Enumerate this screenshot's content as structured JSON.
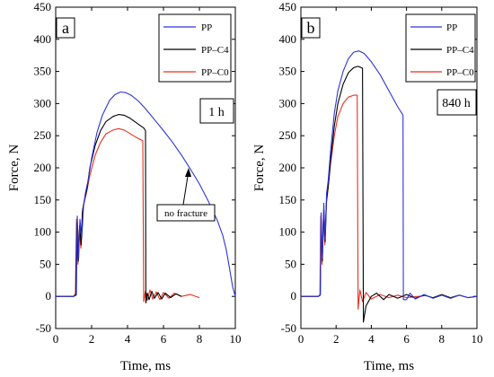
{
  "chart_data": [
    {
      "type": "line",
      "panel_label": "a",
      "condition_label": "1 h",
      "annotation": "no fracture",
      "xlabel": "Time, ms",
      "ylabel": "Force, N",
      "xlim": [
        0,
        10
      ],
      "ylim": [
        -50,
        450
      ],
      "x_ticks": [
        0,
        2,
        4,
        6,
        8,
        10
      ],
      "y_ticks": [
        -50,
        0,
        50,
        100,
        150,
        200,
        250,
        300,
        350,
        400,
        450
      ],
      "legend_position": "top-right",
      "series": [
        {
          "name": "PP",
          "color": "#2b35d8",
          "points": [
            [
              0,
              0
            ],
            [
              1.0,
              0
            ],
            [
              1.15,
              2
            ],
            [
              1.2,
              125
            ],
            [
              1.28,
              60
            ],
            [
              1.35,
              120
            ],
            [
              1.45,
              90
            ],
            [
              1.55,
              140
            ],
            [
              1.65,
              160
            ],
            [
              1.8,
              180
            ],
            [
              2.0,
              215
            ],
            [
              2.3,
              255
            ],
            [
              2.6,
              282
            ],
            [
              3.0,
              305
            ],
            [
              3.3,
              314
            ],
            [
              3.6,
              318
            ],
            [
              3.9,
              317
            ],
            [
              4.2,
              313
            ],
            [
              4.6,
              304
            ],
            [
              5.0,
              292
            ],
            [
              5.5,
              275
            ],
            [
              6.0,
              258
            ],
            [
              6.5,
              240
            ],
            [
              7.0,
              220
            ],
            [
              7.5,
              198
            ],
            [
              8.0,
              175
            ],
            [
              8.5,
              148
            ],
            [
              9.0,
              118
            ],
            [
              9.3,
              95
            ],
            [
              9.5,
              72
            ],
            [
              9.7,
              40
            ],
            [
              9.85,
              15
            ],
            [
              10.0,
              0
            ]
          ]
        },
        {
          "name": "PP–C4",
          "color": "#000000",
          "points": [
            [
              0,
              0
            ],
            [
              1.0,
              0
            ],
            [
              1.12,
              3
            ],
            [
              1.18,
              115
            ],
            [
              1.26,
              55
            ],
            [
              1.33,
              110
            ],
            [
              1.42,
              80
            ],
            [
              1.5,
              135
            ],
            [
              1.6,
              150
            ],
            [
              1.75,
              168
            ],
            [
              1.9,
              200
            ],
            [
              2.2,
              235
            ],
            [
              2.5,
              258
            ],
            [
              2.8,
              272
            ],
            [
              3.2,
              280
            ],
            [
              3.5,
              283
            ],
            [
              3.8,
              282
            ],
            [
              4.1,
              278
            ],
            [
              4.5,
              270
            ],
            [
              4.9,
              262
            ],
            [
              5.0,
              258
            ],
            [
              5.02,
              -10
            ],
            [
              5.1,
              5
            ],
            [
              5.2,
              -5
            ],
            [
              5.35,
              8
            ],
            [
              5.5,
              -3
            ],
            [
              5.7,
              6
            ],
            [
              5.9,
              -4
            ],
            [
              6.1,
              5
            ],
            [
              6.4,
              -2
            ],
            [
              6.7,
              4
            ],
            [
              7.0,
              0
            ]
          ]
        },
        {
          "name": "PP–C0",
          "color": "#e8301f",
          "points": [
            [
              0,
              0
            ],
            [
              1.0,
              0
            ],
            [
              1.1,
              4
            ],
            [
              1.16,
              120
            ],
            [
              1.24,
              50
            ],
            [
              1.32,
              105
            ],
            [
              1.4,
              75
            ],
            [
              1.48,
              130
            ],
            [
              1.58,
              145
            ],
            [
              1.72,
              162
            ],
            [
              1.9,
              188
            ],
            [
              2.2,
              220
            ],
            [
              2.5,
              240
            ],
            [
              2.8,
              253
            ],
            [
              3.2,
              259
            ],
            [
              3.5,
              261
            ],
            [
              3.8,
              259
            ],
            [
              4.1,
              254
            ],
            [
              4.5,
              247
            ],
            [
              4.85,
              242
            ],
            [
              4.9,
              -8
            ],
            [
              5.0,
              8
            ],
            [
              5.1,
              -6
            ],
            [
              5.25,
              10
            ],
            [
              5.4,
              -4
            ],
            [
              5.6,
              7
            ],
            [
              5.8,
              -5
            ],
            [
              6.0,
              6
            ],
            [
              6.3,
              -3
            ],
            [
              6.6,
              5
            ],
            [
              7.0,
              0
            ],
            [
              7.5,
              3
            ],
            [
              8.0,
              -2
            ]
          ]
        }
      ]
    },
    {
      "type": "line",
      "panel_label": "b",
      "condition_label": "840 h",
      "xlabel": "Time, ms",
      "ylabel": "Force, N",
      "xlim": [
        0,
        10
      ],
      "ylim": [
        -50,
        450
      ],
      "x_ticks": [
        0,
        2,
        4,
        6,
        8,
        10
      ],
      "y_ticks": [
        -50,
        0,
        50,
        100,
        150,
        200,
        250,
        300,
        350,
        400,
        450
      ],
      "legend_position": "top-right",
      "series": [
        {
          "name": "PP",
          "color": "#2b35d8",
          "points": [
            [
              0,
              0
            ],
            [
              1.0,
              0
            ],
            [
              1.1,
              3
            ],
            [
              1.15,
              130
            ],
            [
              1.22,
              60
            ],
            [
              1.3,
              145
            ],
            [
              1.38,
              90
            ],
            [
              1.46,
              160
            ],
            [
              1.55,
              180
            ],
            [
              1.7,
              230
            ],
            [
              1.9,
              285
            ],
            [
              2.1,
              320
            ],
            [
              2.4,
              350
            ],
            [
              2.7,
              370
            ],
            [
              3.0,
              380
            ],
            [
              3.3,
              382
            ],
            [
              3.6,
              378
            ],
            [
              4.0,
              365
            ],
            [
              4.5,
              345
            ],
            [
              5.0,
              320
            ],
            [
              5.5,
              295
            ],
            [
              5.8,
              282
            ],
            [
              5.82,
              -5
            ],
            [
              6.0,
              -5
            ],
            [
              6.2,
              5
            ],
            [
              6.5,
              -4
            ],
            [
              7.0,
              3
            ],
            [
              7.5,
              -3
            ],
            [
              8.0,
              2
            ],
            [
              8.5,
              -3
            ],
            [
              9.0,
              2
            ],
            [
              9.5,
              -2
            ],
            [
              10.0,
              0
            ]
          ]
        },
        {
          "name": "PP–C4",
          "color": "#000000",
          "points": [
            [
              0,
              0
            ],
            [
              1.0,
              0
            ],
            [
              1.1,
              2
            ],
            [
              1.15,
              120
            ],
            [
              1.22,
              55
            ],
            [
              1.3,
              135
            ],
            [
              1.38,
              85
            ],
            [
              1.46,
              150
            ],
            [
              1.55,
              170
            ],
            [
              1.7,
              215
            ],
            [
              1.9,
              265
            ],
            [
              2.1,
              300
            ],
            [
              2.4,
              330
            ],
            [
              2.7,
              348
            ],
            [
              3.0,
              356
            ],
            [
              3.25,
              358
            ],
            [
              3.5,
              355
            ],
            [
              3.55,
              -40
            ],
            [
              3.7,
              -15
            ],
            [
              4.0,
              0
            ],
            [
              4.3,
              5
            ],
            [
              4.7,
              -5
            ],
            [
              5.0,
              3
            ],
            [
              5.5,
              -3
            ],
            [
              6.0,
              3
            ],
            [
              6.5,
              -3
            ],
            [
              7.0,
              2
            ],
            [
              7.5,
              -2
            ],
            [
              8.0,
              3
            ],
            [
              8.5,
              -2
            ],
            [
              9.0,
              2
            ],
            [
              9.5,
              -2
            ],
            [
              10.0,
              0
            ]
          ]
        },
        {
          "name": "PP–C0",
          "color": "#e8301f",
          "points": [
            [
              0,
              0
            ],
            [
              1.0,
              0
            ],
            [
              1.08,
              3
            ],
            [
              1.13,
              125
            ],
            [
              1.2,
              50
            ],
            [
              1.28,
              128
            ],
            [
              1.36,
              80
            ],
            [
              1.44,
              142
            ],
            [
              1.53,
              165
            ],
            [
              1.68,
              205
            ],
            [
              1.9,
              250
            ],
            [
              2.1,
              280
            ],
            [
              2.4,
              300
            ],
            [
              2.7,
              310
            ],
            [
              3.0,
              313
            ],
            [
              3.2,
              313
            ],
            [
              3.25,
              -20
            ],
            [
              3.35,
              10
            ],
            [
              3.5,
              -8
            ],
            [
              3.7,
              6
            ],
            [
              4.0,
              -4
            ],
            [
              4.5,
              3
            ],
            [
              5.0,
              -2
            ],
            [
              5.5,
              2
            ],
            [
              6.0,
              -2
            ],
            [
              7.0,
              1
            ]
          ]
        }
      ]
    }
  ]
}
